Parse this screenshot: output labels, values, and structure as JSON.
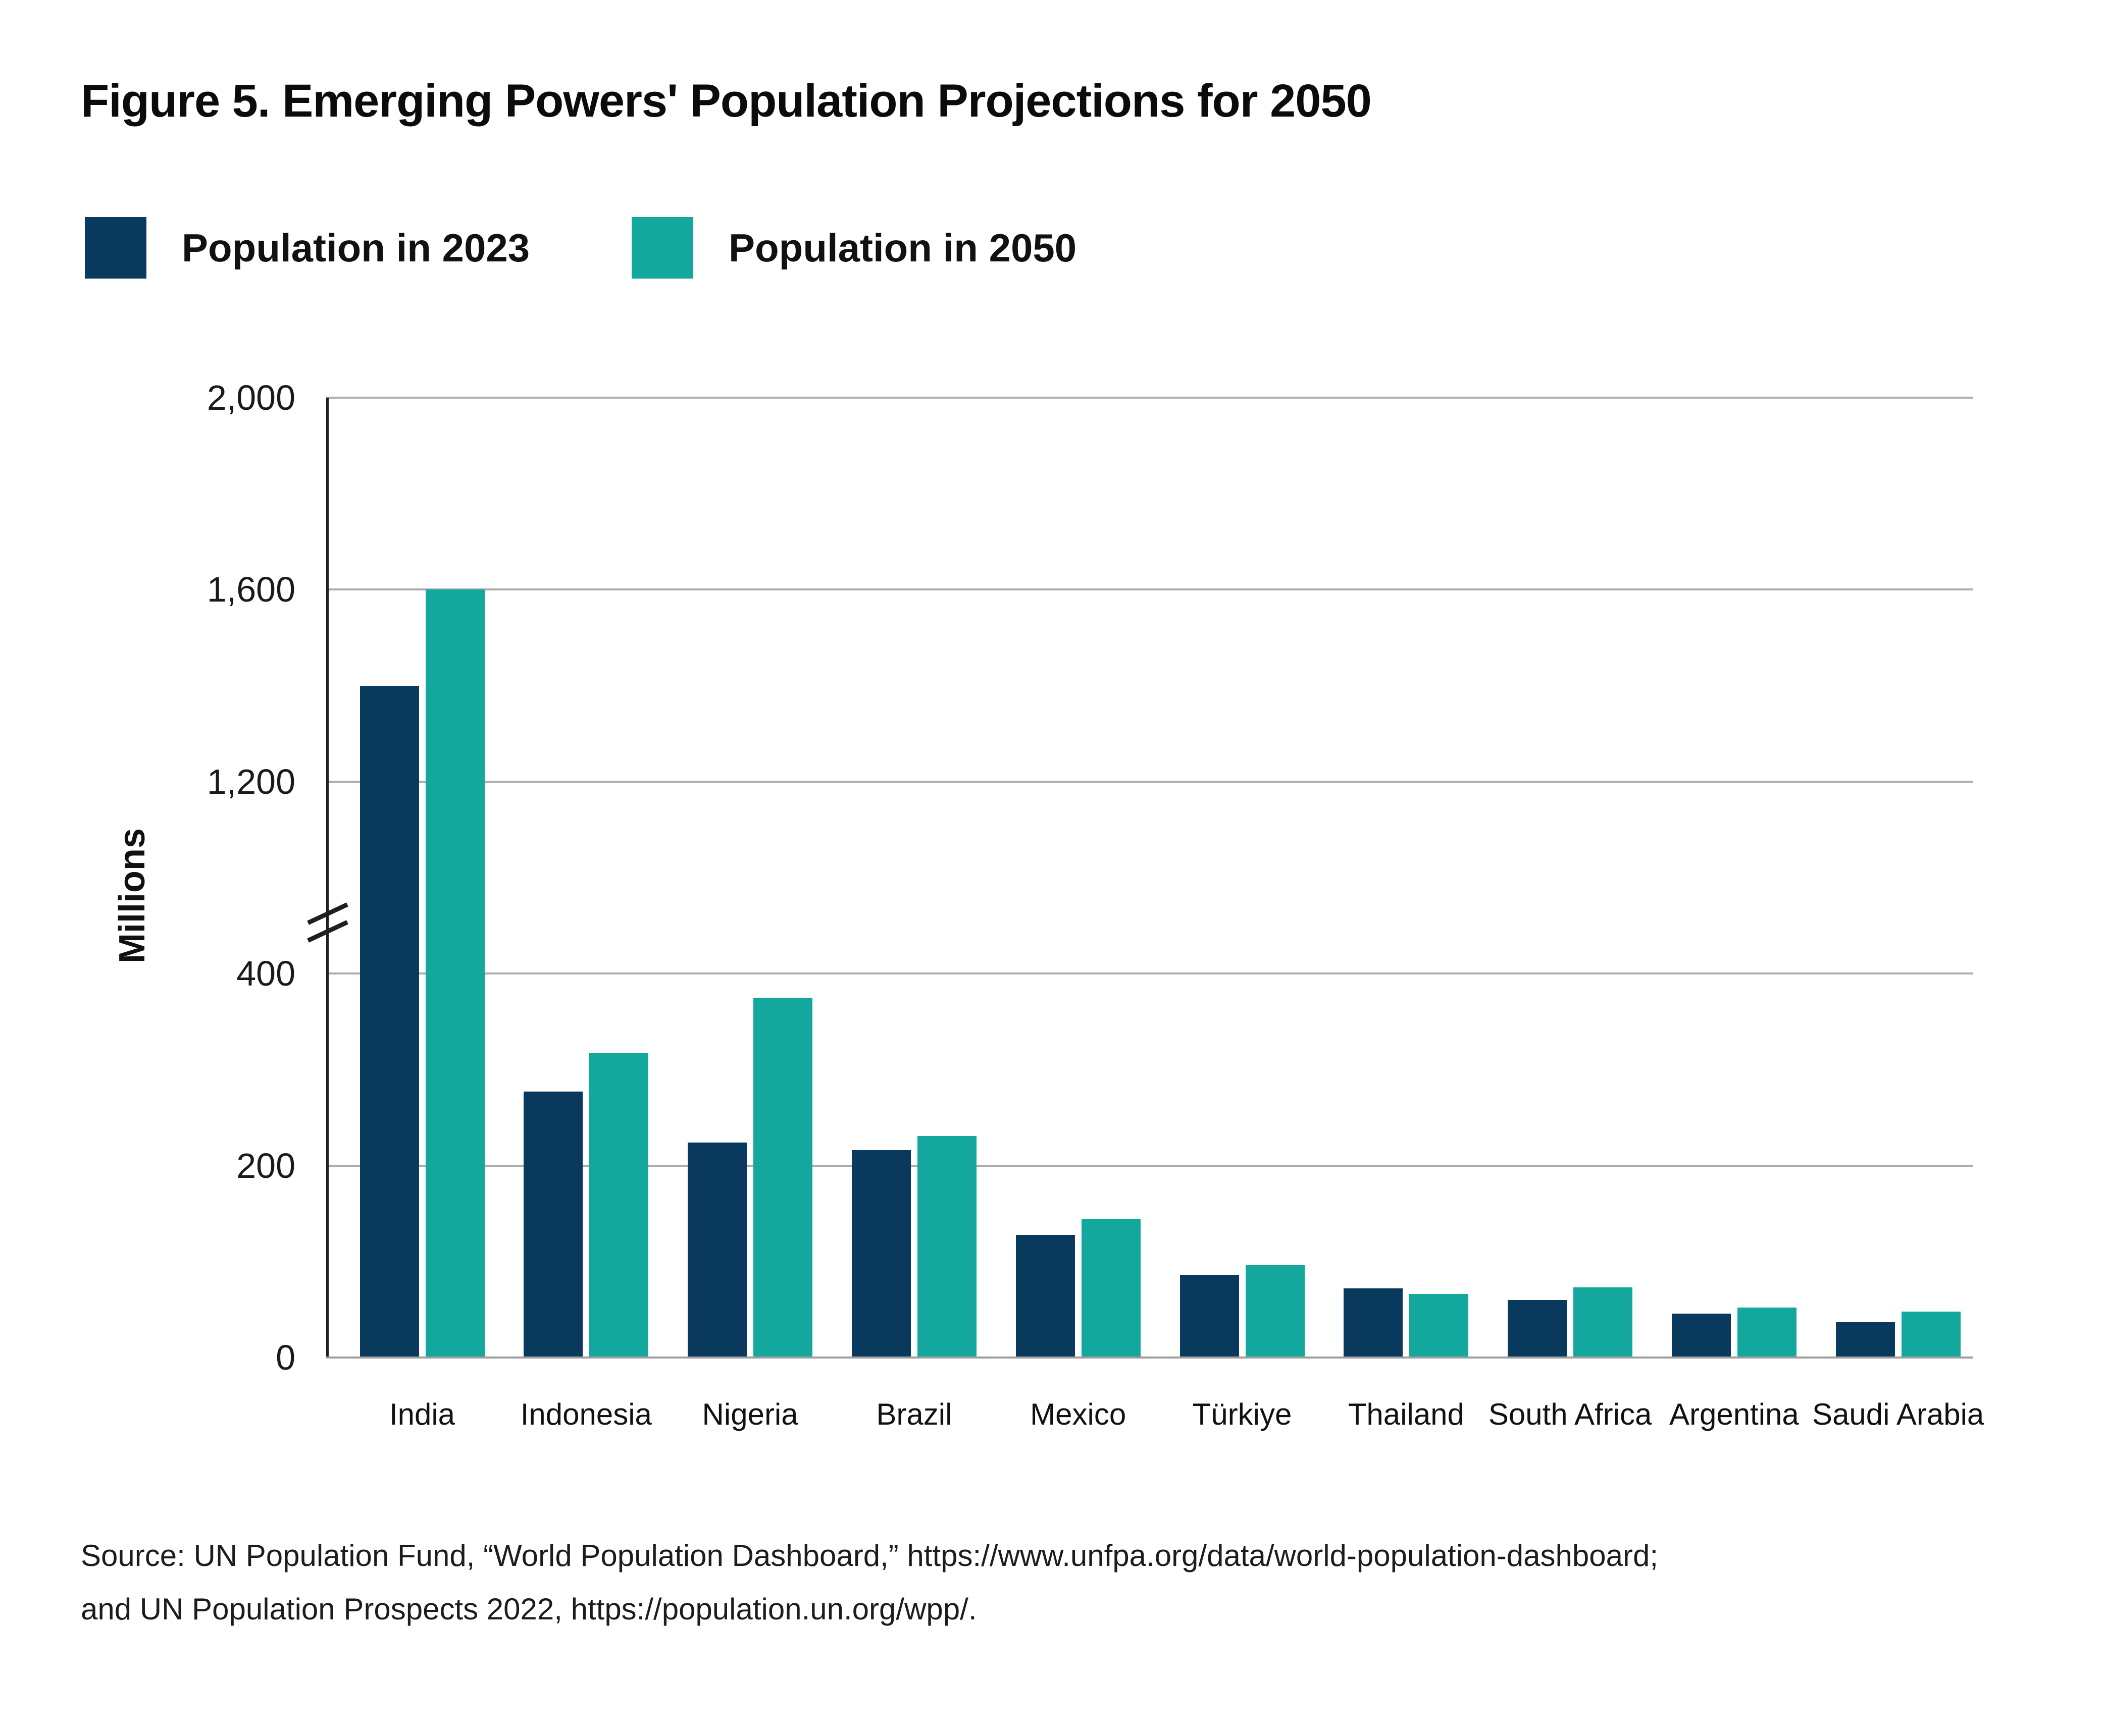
{
  "chart_data": {
    "type": "bar",
    "title": "Figure 5. Emerging Powers' Population Projections for 2050",
    "categories": [
      "India",
      "Indonesia",
      "Nigeria",
      "Brazil",
      "Mexico",
      "Türkiye",
      "Thailand",
      "South Africa",
      "Argentina",
      "Saudi Arabia"
    ],
    "series": [
      {
        "name": "Population in 2023",
        "year": "2023",
        "color": "#093A5D",
        "values": [
          1400,
          277,
          224,
          216,
          128,
          86,
          72,
          60,
          46,
          37
        ]
      },
      {
        "name": "Population in 2050",
        "year": "2050",
        "color": "#14A79D",
        "values": [
          1600,
          317,
          375,
          231,
          144,
          96,
          66,
          73,
          52,
          48
        ]
      }
    ],
    "xlabel": "",
    "ylabel": "Millions",
    "y_ticks": [
      {
        "label": "2,000",
        "value": 2000
      },
      {
        "label": "1,600",
        "value": 1600
      },
      {
        "label": "1,200",
        "value": 1200
      },
      {
        "label": "400",
        "value": 400
      },
      {
        "label": "200",
        "value": 200
      },
      {
        "label": "0",
        "value": 0
      }
    ],
    "axis_break": {
      "between": [
        400,
        1200
      ]
    },
    "ylim_lower_segment": [
      0,
      400
    ],
    "ylim_upper_segment": [
      1200,
      2000
    ],
    "grid": "horizontal",
    "legend_position": "top-left"
  },
  "colors": {
    "navy": "#093A5D",
    "teal": "#14A79D",
    "gridline": "#ADADAD",
    "axis": "#1F1F1F",
    "text": "#111111",
    "background": "#FFFFFF"
  },
  "source": {
    "line1": "Source: UN Population Fund, “World Population Dashboard,” https://www.unfpa.org/data/world-population-dashboard;",
    "line2": "and UN Population Prospects 2022,  https://population.un.org/wpp/."
  }
}
